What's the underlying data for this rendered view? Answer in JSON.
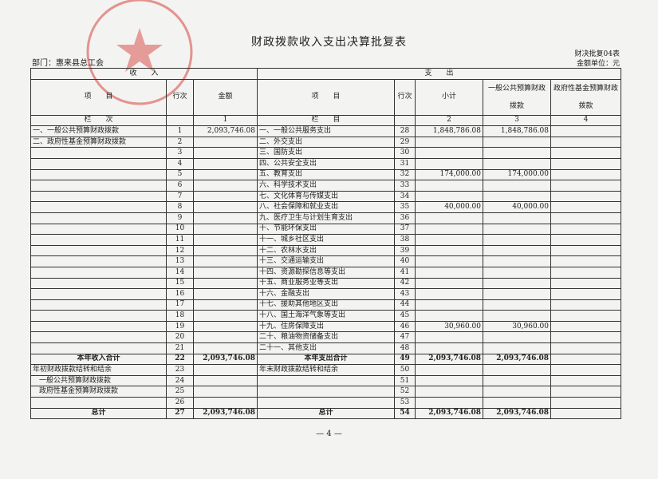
{
  "header": {
    "title": "财政拨款收入支出决算批复表",
    "department": "部门：惠来县总工会",
    "form_no": "财决批复04表",
    "unit": "金额单位：元"
  },
  "table": {
    "group_headers": [
      "收　　入",
      "支　　出"
    ],
    "columns": [
      "项　　目",
      "行次",
      "金额",
      "项　　目",
      "行次",
      "小计",
      "一般公共预算财政拨款",
      "政府性基金预算财政拨款"
    ],
    "column_numbers": [
      "栏　　次",
      null,
      1,
      "栏　　目",
      null,
      2,
      3,
      4
    ],
    "rows": [
      [
        "一、一般公共预算财政拨款",
        1,
        "2,093,746.08",
        "一、一般公共服务支出",
        28,
        "1,848,786.08",
        "1,848,786.08",
        null
      ],
      [
        "二、政府性基金预算财政拨款",
        2,
        null,
        "二、外交支出",
        29,
        null,
        null,
        null
      ],
      [
        null,
        3,
        null,
        "三、国防支出",
        30,
        null,
        null,
        null
      ],
      [
        null,
        4,
        null,
        "四、公共安全支出",
        31,
        null,
        null,
        null
      ],
      [
        null,
        5,
        null,
        "五、教育支出",
        32,
        "174,000.00",
        "174,000.00",
        null
      ],
      [
        null,
        6,
        null,
        "六、科学技术支出",
        33,
        null,
        null,
        null
      ],
      [
        null,
        7,
        null,
        "七、文化体育与传媒支出",
        34,
        null,
        null,
        null
      ],
      [
        null,
        8,
        null,
        "八、社会保障和就业支出",
        35,
        "40,000.00",
        "40,000.00",
        null
      ],
      [
        null,
        9,
        null,
        "九、医疗卫生与计划生育支出",
        36,
        null,
        null,
        null
      ],
      [
        null,
        10,
        null,
        "十、节能环保支出",
        37,
        null,
        null,
        null
      ],
      [
        null,
        11,
        null,
        "十一、城乡社区支出",
        38,
        null,
        null,
        null
      ],
      [
        null,
        12,
        null,
        "十二、农林水支出",
        39,
        null,
        null,
        null
      ],
      [
        null,
        13,
        null,
        "十三、交通运输支出",
        40,
        null,
        null,
        null
      ],
      [
        null,
        14,
        null,
        "十四、资源勘探信息等支出",
        41,
        null,
        null,
        null
      ],
      [
        null,
        15,
        null,
        "十五、商业服务业等支出",
        42,
        null,
        null,
        null
      ],
      [
        null,
        16,
        null,
        "十六、金融支出",
        43,
        null,
        null,
        null
      ],
      [
        null,
        17,
        null,
        "十七、援助其他地区支出",
        44,
        null,
        null,
        null
      ],
      [
        null,
        18,
        null,
        "十八、国土海洋气象等支出",
        45,
        null,
        null,
        null
      ],
      [
        null,
        19,
        null,
        "十九、住房保障支出",
        46,
        "30,960.00",
        "30,960.00",
        null
      ],
      [
        null,
        20,
        null,
        "二十、粮油物资储备支出",
        47,
        null,
        null,
        null
      ],
      [
        null,
        21,
        null,
        "二十一、其他支出",
        48,
        null,
        null,
        null
      ],
      [
        "本年收入合计",
        22,
        "2,093,746.08",
        "本年支出合计",
        49,
        "2,093,746.08",
        "2,093,746.08",
        null
      ],
      [
        "年初财政拨款结转和结余",
        23,
        null,
        "年末财政拨款结转和结余",
        50,
        null,
        null,
        null
      ],
      [
        "一般公共预算财政拨款",
        24,
        null,
        null,
        51,
        null,
        null,
        null
      ],
      [
        "政府性基金预算财政拨款",
        25,
        null,
        null,
        52,
        null,
        null,
        null
      ],
      [
        null,
        26,
        null,
        null,
        53,
        null,
        null,
        null
      ],
      [
        "总计",
        27,
        "2,093,746.08",
        "总计",
        54,
        "2,093,746.08",
        "2,093,746.08",
        null
      ]
    ]
  },
  "footer": {
    "page": "— 4 —"
  }
}
